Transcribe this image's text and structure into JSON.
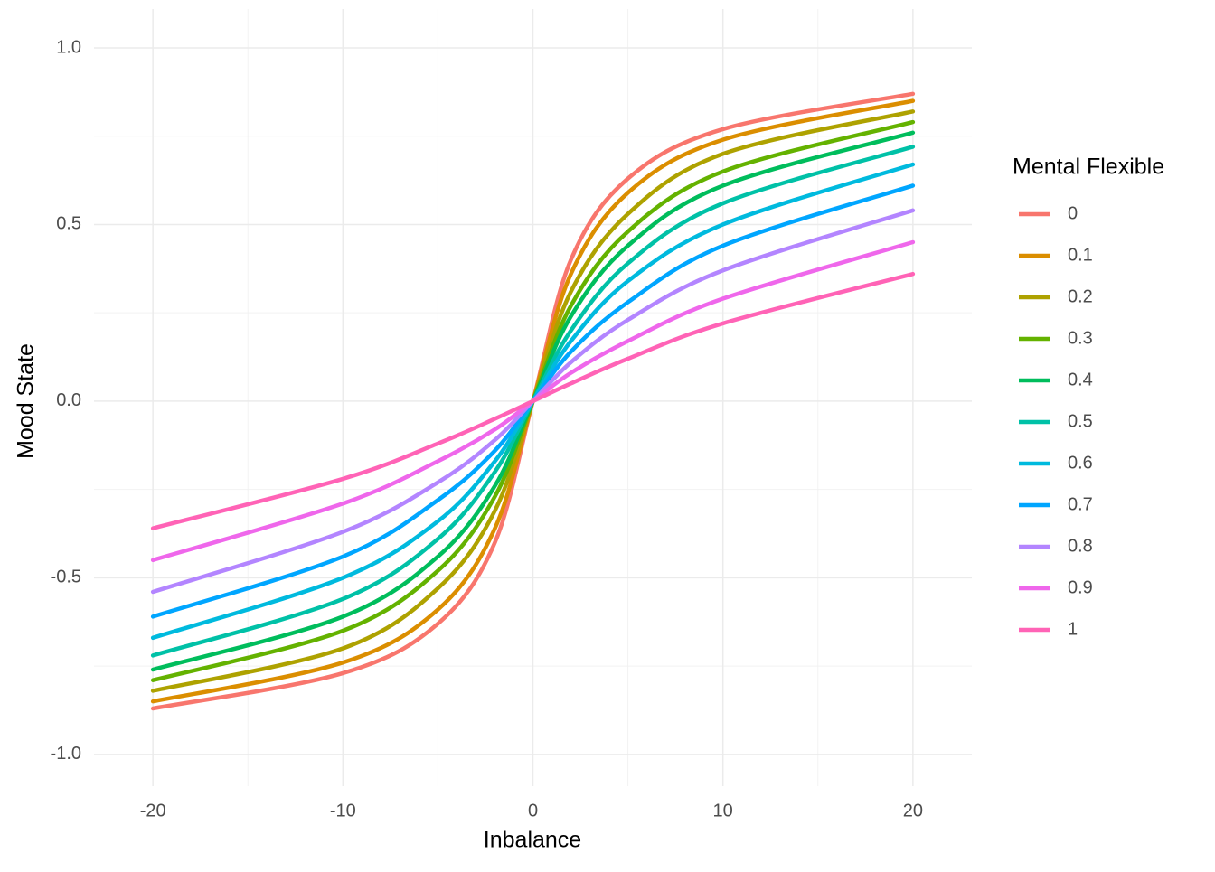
{
  "chart_data": {
    "type": "line",
    "x_label": "Inbalance",
    "y_label": "Mood State",
    "legend_title": "Mental Flexible",
    "legend_position": "right",
    "xlim": [
      -23.1,
      23.1
    ],
    "ylim": [
      -1.09,
      1.11
    ],
    "xticks": [
      -20,
      -10,
      0,
      10,
      20
    ],
    "yticks": [
      {
        "value": -1,
        "label": "-1.0"
      },
      -0.5,
      {
        "value": 0,
        "label": "0.0"
      },
      0.5,
      {
        "value": 1,
        "label": "1.0"
      }
    ],
    "x_minor_ticks": [
      -15,
      -5,
      5,
      15
    ],
    "y_minor_ticks": [
      -0.75,
      -0.25,
      0.25,
      0.75
    ],
    "grid": true,
    "x": [
      -20,
      -10,
      -5,
      -2,
      0,
      2,
      5,
      10,
      20
    ],
    "series": [
      {
        "name": "0",
        "color": "#F8766D",
        "values": [
          -0.87,
          -0.77,
          -0.63,
          -0.4,
          0,
          0.4,
          0.63,
          0.77,
          0.87
        ]
      },
      {
        "name": "0.1",
        "color": "#DB8E00",
        "values": [
          -0.85,
          -0.74,
          -0.59,
          -0.36,
          0,
          0.36,
          0.59,
          0.74,
          0.85
        ]
      },
      {
        "name": "0.2",
        "color": "#AEA200",
        "values": [
          -0.82,
          -0.7,
          -0.53,
          -0.31,
          0,
          0.31,
          0.53,
          0.7,
          0.82
        ]
      },
      {
        "name": "0.3",
        "color": "#64B200",
        "values": [
          -0.79,
          -0.65,
          -0.48,
          -0.27,
          0,
          0.27,
          0.48,
          0.65,
          0.79
        ]
      },
      {
        "name": "0.4",
        "color": "#00BD5C",
        "values": [
          -0.76,
          -0.61,
          -0.44,
          -0.24,
          0,
          0.24,
          0.44,
          0.61,
          0.76
        ]
      },
      {
        "name": "0.5",
        "color": "#00C1A7",
        "values": [
          -0.72,
          -0.56,
          -0.39,
          -0.2,
          0,
          0.2,
          0.39,
          0.56,
          0.72
        ]
      },
      {
        "name": "0.6",
        "color": "#00BADE",
        "values": [
          -0.67,
          -0.5,
          -0.34,
          -0.17,
          0,
          0.17,
          0.34,
          0.5,
          0.67
        ]
      },
      {
        "name": "0.7",
        "color": "#00A6FF",
        "values": [
          -0.61,
          -0.44,
          -0.28,
          -0.14,
          0,
          0.14,
          0.28,
          0.44,
          0.61
        ]
      },
      {
        "name": "0.8",
        "color": "#B385FF",
        "values": [
          -0.54,
          -0.37,
          -0.23,
          -0.11,
          0,
          0.11,
          0.23,
          0.37,
          0.54
        ]
      },
      {
        "name": "0.9",
        "color": "#EF67EB",
        "values": [
          -0.45,
          -0.29,
          -0.17,
          -0.08,
          0,
          0.08,
          0.17,
          0.29,
          0.45
        ]
      },
      {
        "name": "1",
        "color": "#FF63B6",
        "values": [
          -0.36,
          -0.22,
          -0.12,
          -0.05,
          0,
          0.05,
          0.12,
          0.22,
          0.36
        ]
      }
    ]
  }
}
